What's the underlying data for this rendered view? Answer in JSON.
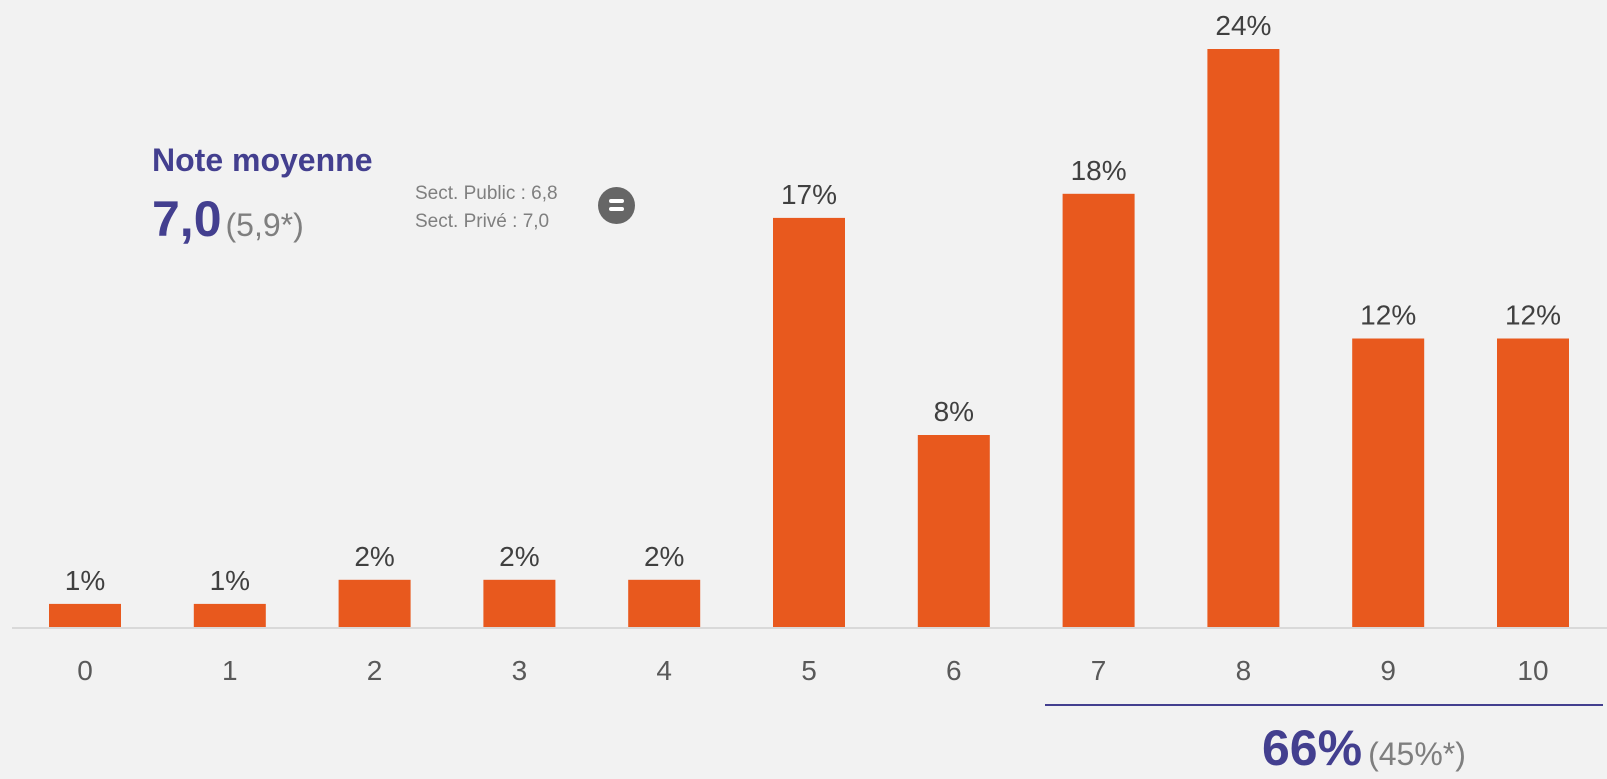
{
  "chart_data": {
    "type": "bar",
    "categories": [
      "0",
      "1",
      "2",
      "3",
      "4",
      "5",
      "6",
      "7",
      "8",
      "9",
      "10"
    ],
    "values": [
      1,
      1,
      2,
      2,
      2,
      17,
      8,
      18,
      24,
      12,
      12
    ],
    "value_labels": [
      "1%",
      "1%",
      "2%",
      "2%",
      "2%",
      "17%",
      "8%",
      "18%",
      "24%",
      "12%",
      "12%"
    ],
    "ylim": [
      0,
      24
    ],
    "bar_color": "#e8591e",
    "axis_color": "#d9d9d9",
    "grid": false,
    "legend": "none"
  },
  "average": {
    "title": "Note moyenne",
    "value": "7,0",
    "previous": "(5,9*)",
    "sector_public": "Sect. Public : 6,8",
    "sector_private": "Sect. Privé : 7,0",
    "trend_icon": "equal-sign-icon"
  },
  "group_7_10": {
    "total": "66%",
    "previous": "(45%*)",
    "line_color": "#433f8f"
  },
  "colors": {
    "accent": "#433f8f",
    "muted": "#7f7f7f",
    "bar": "#e8591e",
    "background": "#f2f2f2"
  }
}
